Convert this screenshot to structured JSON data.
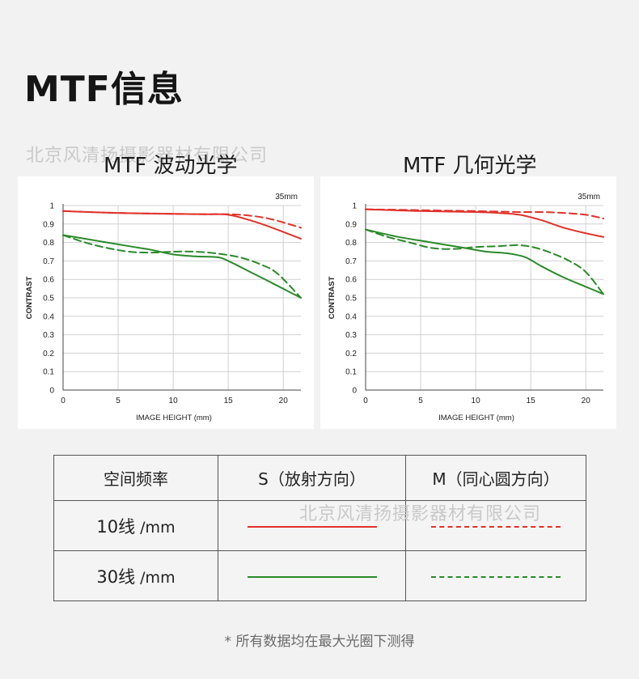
{
  "page": {
    "title": "MTF信息",
    "watermark": "北京风清扬摄影器材有限公司",
    "footnote": "* 所有数据均在最大光圈下测得"
  },
  "colors": {
    "s_10": "#e0322a",
    "m_10": "#e0322a",
    "s_30": "#2a8a2a",
    "m_30": "#2a8a2a"
  },
  "chart_data": [
    {
      "type": "line",
      "title": "MTF 波动光学",
      "focal_label": "35mm",
      "xlabel": "IMAGE HEIGHT (mm)",
      "ylabel": "CONTRAST",
      "xlim": [
        0,
        21.6
      ],
      "ylim": [
        0,
        1
      ],
      "xticks": [
        "0",
        "5",
        "10",
        "15",
        "20"
      ],
      "yticks": [
        "0",
        "0.1",
        "0.2",
        "0.3",
        "0.4",
        "0.5",
        "0.6",
        "0.7",
        "0.8",
        "0.9",
        "1"
      ],
      "grid": true,
      "series": [
        {
          "key": "s_10",
          "dashed": false,
          "x": [
            0,
            5,
            10,
            13,
            15,
            17,
            19,
            21.6
          ],
          "y": [
            0.97,
            0.96,
            0.955,
            0.953,
            0.95,
            0.92,
            0.88,
            0.82
          ]
        },
        {
          "key": "m_10",
          "dashed": true,
          "x": [
            0,
            5,
            10,
            13,
            15,
            17,
            19,
            21.6
          ],
          "y": [
            0.97,
            0.96,
            0.955,
            0.953,
            0.953,
            0.945,
            0.925,
            0.88
          ]
        },
        {
          "key": "s_30",
          "dashed": false,
          "x": [
            0,
            3,
            6,
            8,
            10,
            12,
            14,
            15,
            17,
            19,
            21.6
          ],
          "y": [
            0.84,
            0.81,
            0.78,
            0.76,
            0.735,
            0.725,
            0.72,
            0.7,
            0.64,
            0.58,
            0.5
          ]
        },
        {
          "key": "m_30",
          "dashed": true,
          "x": [
            0,
            2,
            4,
            6,
            8,
            10,
            12,
            14,
            16,
            18,
            19.5,
            21.6
          ],
          "y": [
            0.84,
            0.8,
            0.77,
            0.75,
            0.745,
            0.75,
            0.75,
            0.74,
            0.72,
            0.68,
            0.63,
            0.5
          ]
        }
      ]
    },
    {
      "type": "line",
      "title": "MTF 几何光学",
      "focal_label": "35mm",
      "xlabel": "IMAGE HEIGHT (mm)",
      "ylabel": "CONTRAST",
      "xlim": [
        0,
        21.6
      ],
      "ylim": [
        0,
        1
      ],
      "xticks": [
        "0",
        "5",
        "10",
        "15",
        "20"
      ],
      "yticks": [
        "0",
        "0.1",
        "0.2",
        "0.3",
        "0.4",
        "0.5",
        "0.6",
        "0.7",
        "0.8",
        "0.9",
        "1"
      ],
      "grid": true,
      "series": [
        {
          "key": "s_10",
          "dashed": false,
          "x": [
            0,
            5,
            10,
            12,
            14,
            16,
            18,
            20,
            21.6
          ],
          "y": [
            0.98,
            0.97,
            0.965,
            0.96,
            0.95,
            0.92,
            0.88,
            0.85,
            0.83
          ]
        },
        {
          "key": "m_10",
          "dashed": true,
          "x": [
            0,
            5,
            10,
            14,
            16,
            18,
            20,
            21.6
          ],
          "y": [
            0.98,
            0.975,
            0.97,
            0.965,
            0.965,
            0.96,
            0.95,
            0.93
          ]
        },
        {
          "key": "s_30",
          "dashed": false,
          "x": [
            0,
            3,
            6,
            9,
            11,
            13,
            14.5,
            16,
            18,
            20,
            21.6
          ],
          "y": [
            0.87,
            0.83,
            0.8,
            0.77,
            0.75,
            0.74,
            0.72,
            0.67,
            0.61,
            0.56,
            0.52
          ]
        },
        {
          "key": "m_30",
          "dashed": true,
          "x": [
            0,
            2,
            4,
            6,
            8,
            10,
            12,
            14,
            15.5,
            17,
            18.5,
            20,
            21.6
          ],
          "y": [
            0.87,
            0.83,
            0.8,
            0.77,
            0.765,
            0.775,
            0.78,
            0.785,
            0.77,
            0.74,
            0.7,
            0.64,
            0.52
          ]
        }
      ]
    }
  ],
  "legend": {
    "header": {
      "freq": "空间频率",
      "s": "S（放射方向）",
      "m": "M（同心圆方向）"
    },
    "rows": [
      {
        "label": "10线",
        "unit": "/mm",
        "s_key": "s_10",
        "m_key": "m_10"
      },
      {
        "label": "30线",
        "unit": "/mm",
        "s_key": "s_30",
        "m_key": "m_30"
      }
    ]
  }
}
